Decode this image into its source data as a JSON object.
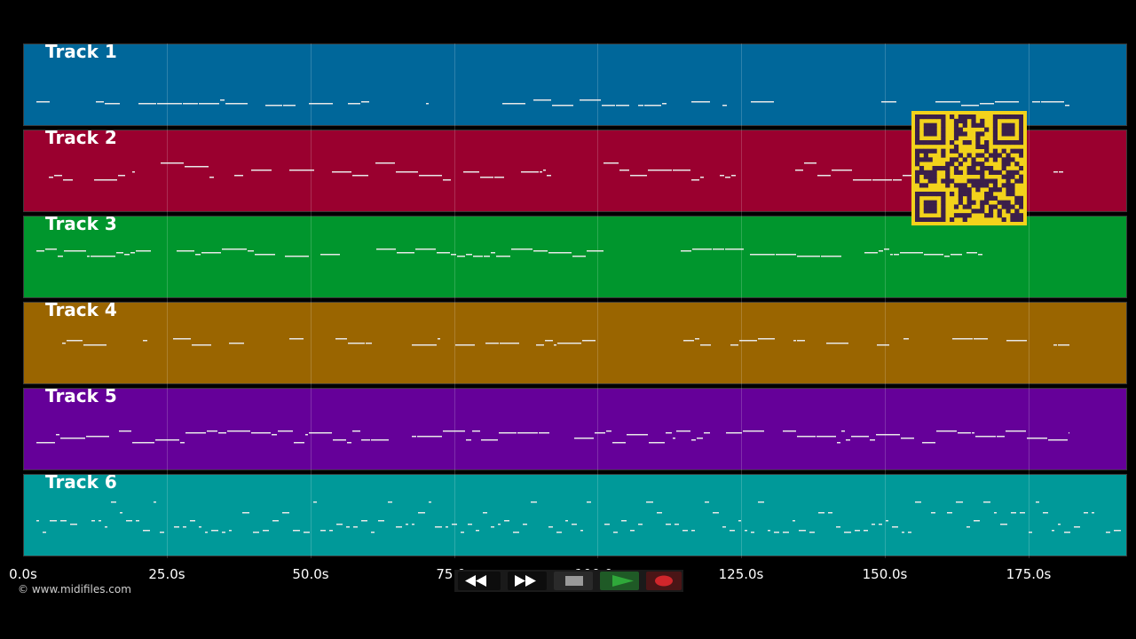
{
  "tracks": [
    {
      "label": "Track 1",
      "color": "#00679a"
    },
    {
      "label": "Track 2",
      "color": "#9a002f"
    },
    {
      "label": "Track 3",
      "color": "#00962d"
    },
    {
      "label": "Track 4",
      "color": "#9a6500"
    },
    {
      "label": "Track 5",
      "color": "#650099"
    },
    {
      "label": "Track 6",
      "color": "#009999"
    }
  ],
  "timeline": {
    "ticks": [
      "0.0s",
      "25.0s",
      "50.0s",
      "75.0s",
      "100.0s",
      "125.0s",
      "150.0s",
      "175.0s"
    ]
  },
  "transport": {
    "rewind_icon": "rewind-icon",
    "forward_icon": "fast-forward-icon",
    "stop_icon": "stop-icon",
    "play_icon": "play-icon",
    "record_icon": "record-icon",
    "play_color": "#2fa83a",
    "record_color": "#d0262b"
  },
  "copyright": "© www.midifiles.com",
  "qr_color": "#f2d21b"
}
